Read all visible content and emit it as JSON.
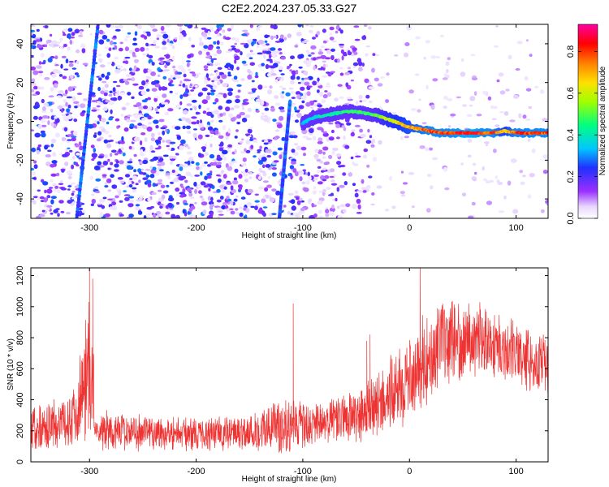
{
  "title": "C2E2.2024.237.05.33.G27",
  "chart_data": [
    {
      "type": "heatmap",
      "xlabel": "Height of straight line (km)",
      "ylabel": "Frequency (Hz)",
      "xlim": [
        -355,
        130
      ],
      "ylim": [
        -50,
        50
      ],
      "x_ticks": [
        -300,
        -200,
        -100,
        0,
        100
      ],
      "y_ticks": [
        -40,
        -20,
        0,
        20,
        40
      ],
      "colorbar": {
        "label": "Normalized spectral amplitude",
        "range": [
          0.0,
          0.93
        ],
        "ticks": [
          "0.0",
          "0.2",
          "0.4",
          "0.6",
          "0.8"
        ],
        "tick_values": [
          0.0,
          0.2,
          0.4,
          0.6,
          0.8
        ]
      },
      "signal_track": {
        "x": [
          -100,
          -90,
          -80,
          -70,
          -60,
          -50,
          -40,
          -30,
          -20,
          -10,
          0,
          10,
          20,
          30,
          40,
          50,
          60,
          70,
          80,
          90,
          100,
          110,
          120,
          130
        ],
        "frequency": [
          -1,
          2,
          3,
          4,
          5,
          5,
          4,
          3,
          1,
          -1,
          -3,
          -4,
          -5,
          -6,
          -6,
          -6,
          -6,
          -6,
          -6,
          -5,
          -6,
          -6,
          -6,
          -6
        ],
        "amplitude": [
          0.35,
          0.4,
          0.45,
          0.45,
          0.5,
          0.5,
          0.5,
          0.55,
          0.65,
          0.7,
          0.75,
          0.8,
          0.85,
          0.85,
          0.85,
          0.9,
          0.9,
          0.85,
          0.85,
          0.7,
          0.85,
          0.85,
          0.85,
          0.85
        ]
      },
      "diagonal_streaks": [
        {
          "x_start": -312,
          "freq_start": -50,
          "x_end": -292,
          "freq_end": 50
        },
        {
          "x_start": -122,
          "freq_start": -50,
          "x_end": -112,
          "freq_end": 10
        }
      ]
    },
    {
      "type": "line",
      "xlabel": "Height of straight line (km)",
      "ylabel": "SNR (10 * v/v)",
      "xlim": [
        -355,
        130
      ],
      "ylim": [
        0,
        1250
      ],
      "x_ticks": [
        -300,
        -200,
        -100,
        0,
        100
      ],
      "y_ticks": [
        0,
        200,
        400,
        600,
        800,
        1000,
        1200
      ],
      "series": [
        {
          "x": [
            -355,
            -340,
            -320,
            -310,
            -305,
            -300,
            -295,
            -290,
            -280,
            -260,
            -240,
            -220,
            -200,
            -180,
            -160,
            -140,
            -120,
            -110,
            -100,
            -90,
            -80,
            -70,
            -60,
            -50,
            -40,
            -30,
            -20,
            -10,
            0,
            10,
            20,
            30,
            40,
            50,
            60,
            70,
            80,
            90,
            100,
            110,
            120,
            130
          ],
          "center": [
            220,
            240,
            250,
            380,
            520,
            620,
            430,
            210,
            200,
            195,
            190,
            185,
            180,
            185,
            190,
            200,
            240,
            250,
            220,
            230,
            260,
            270,
            280,
            290,
            320,
            360,
            420,
            470,
            530,
            620,
            700,
            760,
            780,
            790,
            800,
            790,
            760,
            730,
            700,
            670,
            640,
            610
          ],
          "spread": [
            170,
            180,
            180,
            280,
            420,
            520,
            320,
            150,
            140,
            130,
            130,
            120,
            120,
            120,
            130,
            150,
            210,
            210,
            170,
            150,
            160,
            170,
            180,
            190,
            210,
            240,
            260,
            280,
            300,
            320,
            320,
            300,
            280,
            270,
            260,
            250,
            240,
            230,
            220,
            220,
            210,
            210
          ]
        }
      ]
    }
  ]
}
